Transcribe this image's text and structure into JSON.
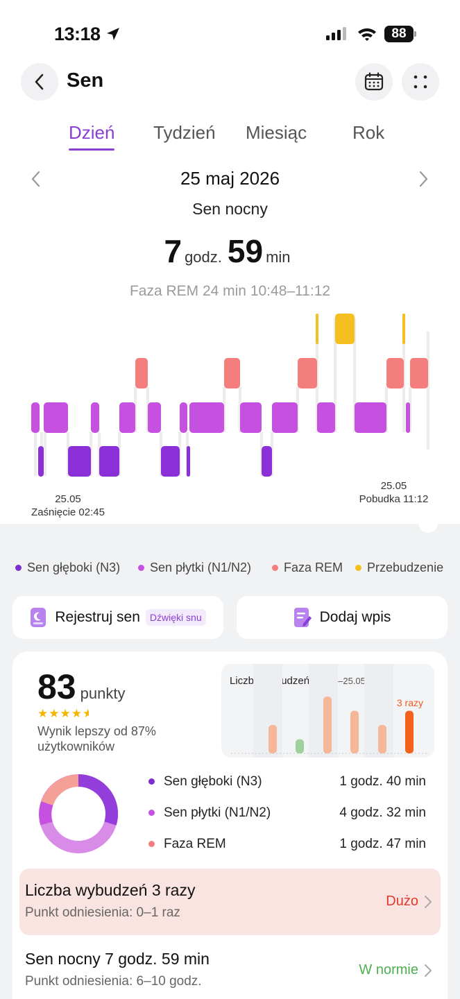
{
  "status_bar": {
    "time": "13:18",
    "battery": "88"
  },
  "header": {
    "title": "Sen"
  },
  "tabs": [
    {
      "label": "Dzień",
      "active": true
    },
    {
      "label": "Tydzień",
      "active": false
    },
    {
      "label": "Miesiąc",
      "active": false
    },
    {
      "label": "Rok",
      "active": false
    }
  ],
  "date": "25 maj 2026",
  "sleep_type": "Sen nocny",
  "duration": {
    "hours": "7",
    "hours_unit": "godz.",
    "minutes": "59",
    "minutes_unit": "min"
  },
  "selected_segment": "Faza REM 24 min 10:48–11:12",
  "hypnogram": {
    "start": {
      "date": "25.05",
      "label": "Zaśnięcie 02:45"
    },
    "end": {
      "date": "25.05",
      "label": "Pobudka 11:12"
    },
    "colors": {
      "deep": "#8b2fd8",
      "light": "#c651e0",
      "rem": "#f47e7e",
      "awake": "#f5bf1f"
    }
  },
  "legend": [
    {
      "label": "Sen głęboki (N3)",
      "color": "#7c2fd0"
    },
    {
      "label": "Sen płytki (N1/N2)",
      "color": "#c651e0"
    },
    {
      "label": "Faza REM",
      "color": "#f47e7e"
    },
    {
      "label": "Przebudzenie",
      "color": "#f5bf1f"
    }
  ],
  "actions": {
    "register": {
      "label": "Rejestruj sen",
      "chip": "Dźwięki snu"
    },
    "add_entry": {
      "label": "Dodaj wpis"
    }
  },
  "score": {
    "value": "83",
    "unit": "punkty",
    "stars": 4.5,
    "comparison": "Wynik lepszy od 87% użytkowników"
  },
  "wakeups_chart": {
    "title": "Liczba wybudzeń",
    "range": "(19.05–25.05)",
    "note": "3 razy",
    "values": [
      2,
      1,
      4,
      3,
      2,
      3
    ]
  },
  "stages": [
    {
      "label": "Sen głęboki (N3)",
      "value": "1 godz. 40 min",
      "color": "#7c2fd0"
    },
    {
      "label": "Sen płytki (N1/N2)",
      "value": "4 godz. 32 min",
      "color": "#c651e0"
    },
    {
      "label": "Faza REM",
      "value": "1 godz. 47 min",
      "color": "#f47e7e"
    }
  ],
  "metrics": [
    {
      "title": "Liczba wybudzeń 3 razy",
      "reference": "Punkt odniesienia: 0–1 raz",
      "status": "Dużo",
      "status_color": "#e0392b"
    },
    {
      "title": "Sen nocny 7 godz. 59 min",
      "reference": "Punkt odniesienia: 6–10 godz.",
      "status": "W normie",
      "status_color": "#4caf50"
    }
  ]
}
